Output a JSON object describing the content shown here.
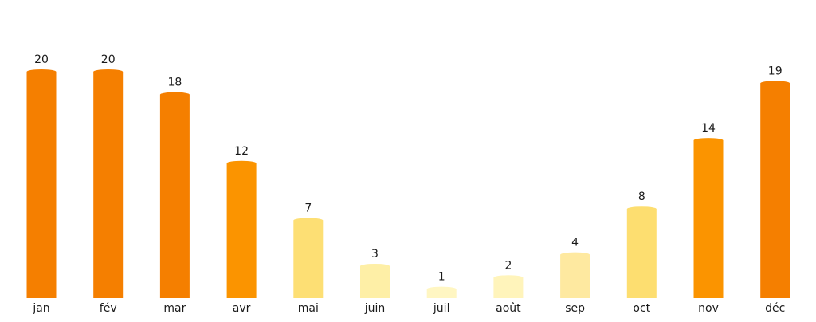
{
  "chart_data": {
    "type": "bar",
    "categories": [
      "jan",
      "fév",
      "mar",
      "avr",
      "mai",
      "juin",
      "juil",
      "août",
      "sep",
      "oct",
      "nov",
      "déc"
    ],
    "values": [
      20,
      20,
      18,
      12,
      7,
      3,
      1,
      2,
      4,
      8,
      14,
      19
    ],
    "data_labels": [
      "20",
      "20",
      "18",
      "12",
      "7",
      "3",
      "1",
      "2",
      "4",
      "8",
      "14",
      "19"
    ],
    "bar_colors": [
      "#f57f00",
      "#f57f00",
      "#f57f00",
      "#fb9400",
      "#fddf74",
      "#feefa6",
      "#fff6c2",
      "#fff4bb",
      "#fee9a0",
      "#fdde70",
      "#fb9400",
      "#f57f00"
    ],
    "title": "",
    "xlabel": "",
    "ylabel": "",
    "ylim": [
      0,
      20
    ],
    "grid": false,
    "legend": "none",
    "axes_visible": false
  }
}
